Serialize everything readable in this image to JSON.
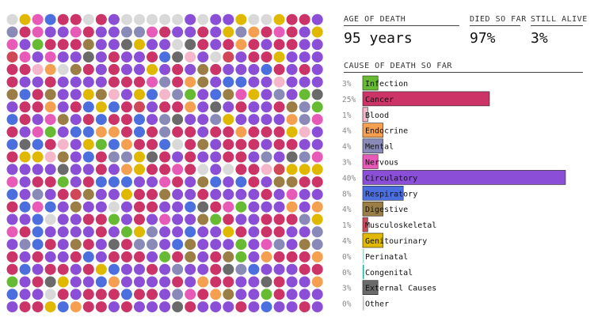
{
  "stats": {
    "age_label": "AGE OF DEATH",
    "age_value": "95 years",
    "died_label": "DIED SO FAR",
    "died_value": "97%",
    "alive_label": "STILL ALIVE",
    "alive_value": "3%"
  },
  "cause_section_title": "CAUSE OF DEATH SO FAR",
  "colors": {
    "Infection": "#66bb33",
    "Cancer": "#cc3366",
    "Blood": "#f4b6c8",
    "Endocrine": "#f5a050",
    "Mental": "#8a8ab8",
    "Nervous": "#e85ab8",
    "Circulatory": "#8a4fd6",
    "Respiratory": "#4c6fe0",
    "Digestive": "#9a7e45",
    "Musculoskeletal": "#d04858",
    "Genitourinary": "#e0b800",
    "Perinatal": "#a0d8d0",
    "Congenital": "#1ab09a",
    "External Causes": "#6a6a6a",
    "Other": "#bbbbbb",
    "Alive": "#d9d9d9"
  },
  "chart_data": {
    "type": "bar",
    "orientation": "horizontal",
    "title": "CAUSE OF DEATH SO FAR",
    "categories": [
      "Infection",
      "Cancer",
      "Blood",
      "Endocrine",
      "Mental",
      "Nervous",
      "Circulatory",
      "Respiratory",
      "Digestive",
      "Musculoskeletal",
      "Genitourinary",
      "Perinatal",
      "Congenital",
      "External Causes",
      "Other"
    ],
    "values": [
      3,
      25,
      1,
      4,
      4,
      3,
      40,
      8,
      4,
      1,
      4,
      0,
      0,
      3,
      0
    ],
    "value_labels": [
      "3%",
      "25%",
      "1%",
      "4%",
      "4%",
      "3%",
      "40%",
      "8%",
      "4%",
      "1%",
      "4%",
      "0%",
      "0%",
      "3%",
      "0%"
    ],
    "unit": "%",
    "xlim": [
      0,
      40
    ],
    "dot_grid": {
      "rows": 24,
      "cols": 25,
      "total": 600,
      "distribution": {
        "Alive": 3,
        "Infection": 3,
        "Cancer": 24,
        "Blood": 1,
        "Endocrine": 4,
        "Mental": 4,
        "Nervous": 3,
        "Circulatory": 39,
        "Respiratory": 8,
        "Digestive": 4,
        "Musculoskeletal": 1,
        "Genitourinary": 4,
        "Congenital": 0,
        "External Causes": 3
      }
    }
  }
}
